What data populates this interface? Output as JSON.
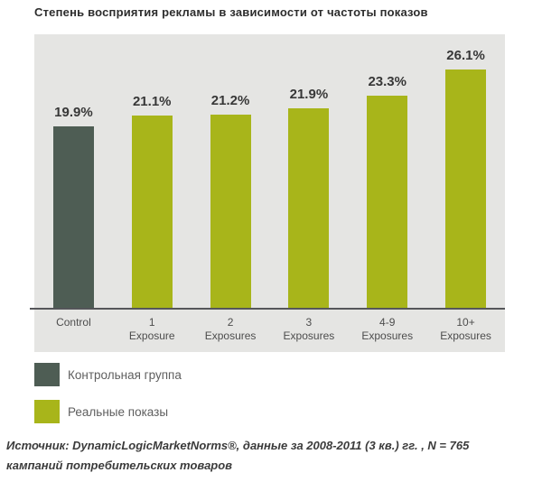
{
  "title": "Степень восприятия рекламы в зависимости от частоты показов",
  "colors": {
    "control_bar": "#4e5d54",
    "exposure_bar": "#a8b51a",
    "plot_background": "#e5e5e3",
    "axis_line": "#55565a"
  },
  "chart_data": {
    "type": "bar",
    "title": "Степень восприятия рекламы в зависимости от частоты показов",
    "categories": [
      "Control",
      "1 Exposure",
      "2 Exposures",
      "3 Exposures",
      "4-9 Exposures",
      "10+ Exposures"
    ],
    "values": [
      19.9,
      21.1,
      21.2,
      21.9,
      23.3,
      26.1
    ],
    "ylim": [
      0,
      30
    ],
    "grid": false,
    "legend_position": "below",
    "bars": [
      {
        "label_line1": "Control",
        "label_line2": "",
        "value": 19.9,
        "display": "19.9%",
        "series": "control"
      },
      {
        "label_line1": "1",
        "label_line2": "Exposure",
        "value": 21.1,
        "display": "21.1%",
        "series": "exposures"
      },
      {
        "label_line1": "2",
        "label_line2": "Exposures",
        "value": 21.2,
        "display": "21.2%",
        "series": "exposures"
      },
      {
        "label_line1": "3",
        "label_line2": "Exposures",
        "value": 21.9,
        "display": "21.9%",
        "series": "exposures"
      },
      {
        "label_line1": "4-9",
        "label_line2": "Exposures",
        "value": 23.3,
        "display": "23.3%",
        "series": "exposures"
      },
      {
        "label_line1": "10+",
        "label_line2": "Exposures",
        "value": 26.1,
        "display": "26.1%",
        "series": "exposures"
      }
    ]
  },
  "legend": {
    "items": [
      {
        "label": "Контрольная группа",
        "series": "control"
      },
      {
        "label": "Реальные показы",
        "series": "exposures"
      }
    ]
  },
  "source": {
    "line1": "Источник: DynamicLogicMarketNorms®, данные за 2008-2011 (3 кв.) гг. , N = 765",
    "line2": "кампаний потребительских товаров"
  }
}
